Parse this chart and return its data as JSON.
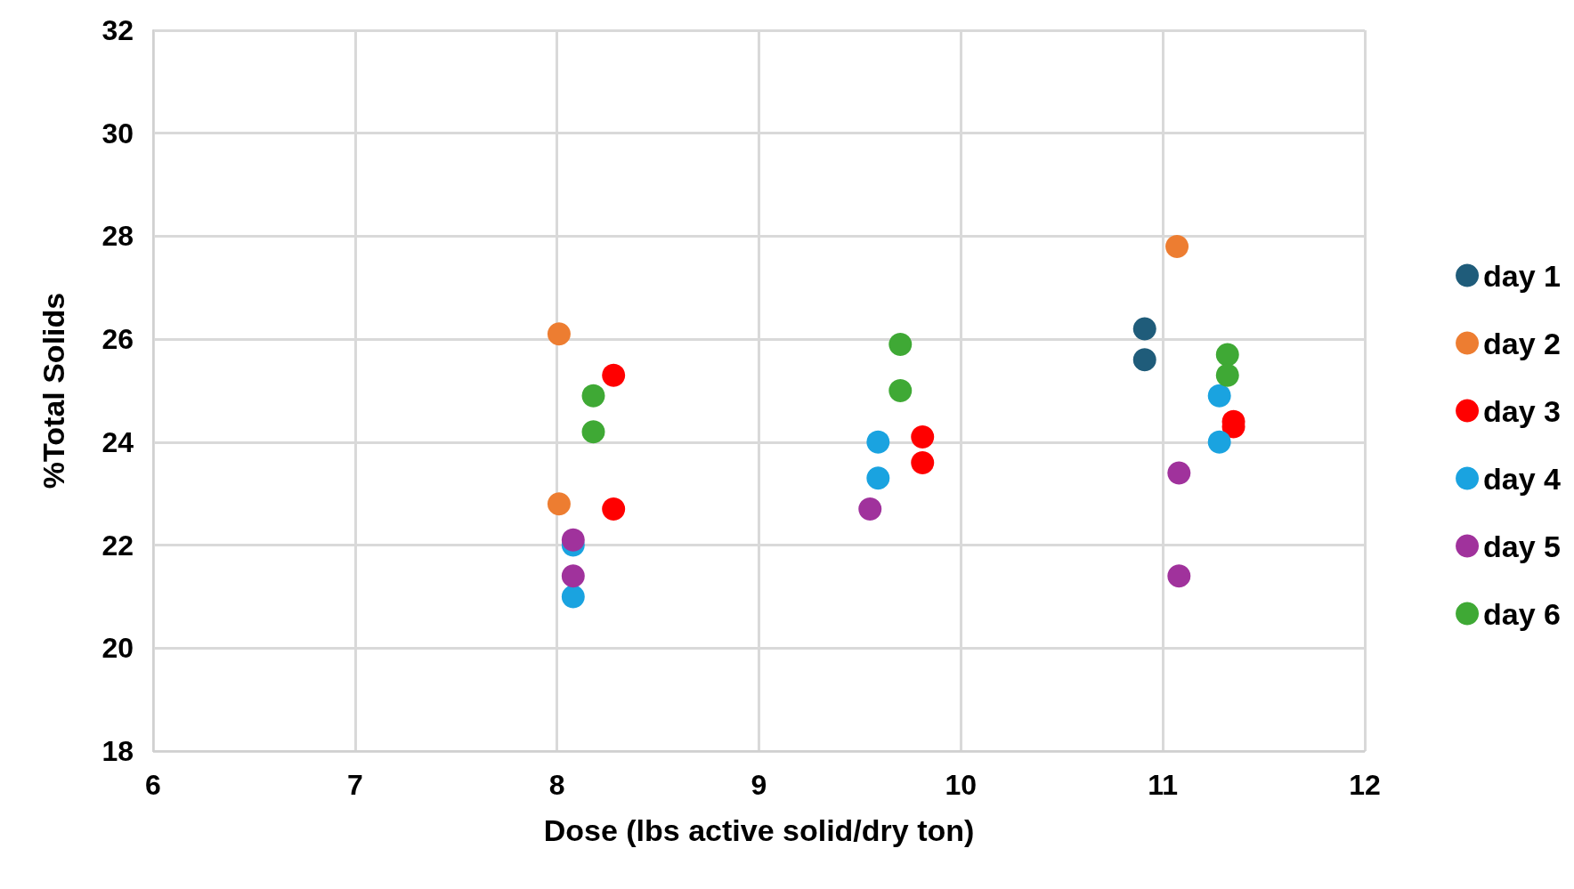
{
  "chart_data": {
    "type": "scatter",
    "xlabel": "Dose (lbs active solid/dry ton)",
    "ylabel": "%Total Solids",
    "xlim": [
      6,
      12
    ],
    "xticks": [
      6,
      7,
      8,
      9,
      10,
      11,
      12
    ],
    "ylim": [
      18,
      32
    ],
    "yticks": [
      18,
      20,
      22,
      24,
      26,
      28,
      30,
      32
    ],
    "grid": true,
    "legend": "right",
    "marker": "circle",
    "series": [
      {
        "name": "day 1",
        "color": "#1f5c7a",
        "x": [
          10.91,
          10.91
        ],
        "values": [
          26.2,
          25.6
        ]
      },
      {
        "name": "day 2",
        "color": "#ed7d31",
        "x": [
          8.01,
          8.01,
          11.07
        ],
        "values": [
          26.1,
          22.8,
          27.8
        ]
      },
      {
        "name": "day 3",
        "color": "#ff0000",
        "x": [
          8.28,
          8.28,
          9.81,
          9.81,
          11.35,
          11.35
        ],
        "values": [
          25.3,
          22.7,
          24.1,
          23.6,
          24.4,
          24.3
        ]
      },
      {
        "name": "day 4",
        "color": "#1aa3e0",
        "x": [
          8.08,
          8.08,
          9.59,
          9.59,
          11.28,
          11.28
        ],
        "values": [
          22.0,
          21.0,
          24.0,
          23.3,
          24.9,
          24.0
        ]
      },
      {
        "name": "day 5",
        "color": "#a0329c",
        "x": [
          8.08,
          8.08,
          9.55,
          11.08,
          11.08
        ],
        "values": [
          22.1,
          21.4,
          22.7,
          23.4,
          21.4
        ]
      },
      {
        "name": "day 6",
        "color": "#3fa935",
        "x": [
          8.18,
          8.18,
          9.7,
          9.7,
          11.32,
          11.32
        ],
        "values": [
          24.9,
          24.2,
          25.9,
          25.0,
          25.7,
          25.3
        ]
      }
    ]
  }
}
